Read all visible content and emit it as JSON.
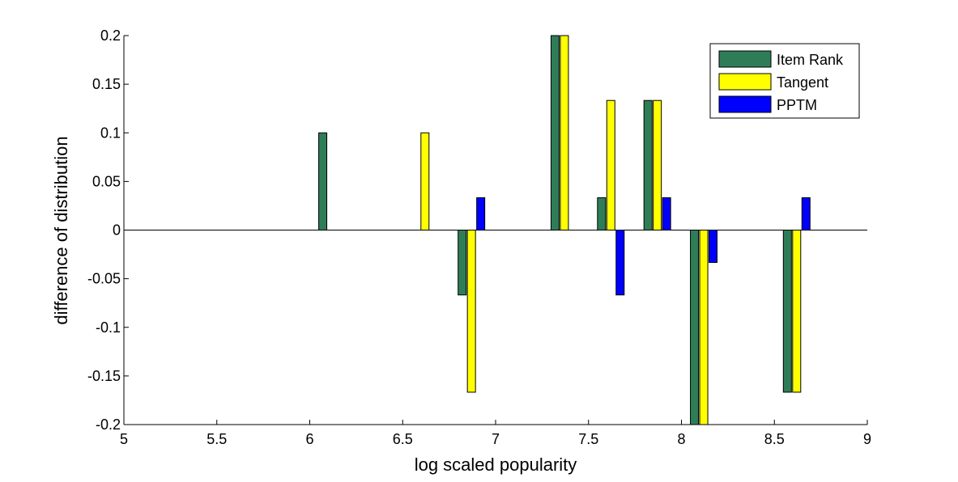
{
  "chart_data": {
    "type": "bar",
    "xlabel": "log scaled popularity",
    "ylabel": "difference of distribution",
    "xlim": [
      5,
      9
    ],
    "ylim": [
      -0.2,
      0.2
    ],
    "xticks": [
      "5",
      "5.5",
      "6",
      "6.5",
      "7",
      "7.5",
      "8",
      "8.5",
      "9"
    ],
    "yticks": [
      "0.2",
      "0.15",
      "0.1",
      "0.05",
      "0",
      "-0.05",
      "-0.1",
      "-0.15",
      "-0.2"
    ],
    "legend_position": "top-right",
    "series": [
      {
        "name": "Item Rank",
        "color": "#2e7d57",
        "points": [
          {
            "x": 6.07,
            "y": 0.1
          },
          {
            "x": 6.82,
            "y": -0.0667
          },
          {
            "x": 7.32,
            "y": 0.2
          },
          {
            "x": 7.57,
            "y": 0.0333
          },
          {
            "x": 7.82,
            "y": 0.1333
          },
          {
            "x": 8.07,
            "y": -0.2
          },
          {
            "x": 8.57,
            "y": -0.1667
          }
        ]
      },
      {
        "name": "Tangent",
        "color": "#ffff00",
        "points": [
          {
            "x": 6.62,
            "y": 0.1
          },
          {
            "x": 6.87,
            "y": -0.1667
          },
          {
            "x": 7.37,
            "y": 0.2
          },
          {
            "x": 7.62,
            "y": 0.1333
          },
          {
            "x": 7.87,
            "y": 0.1333
          },
          {
            "x": 8.12,
            "y": -0.2
          },
          {
            "x": 8.62,
            "y": -0.1667
          }
        ]
      },
      {
        "name": "PPTM",
        "color": "#0000ff",
        "points": [
          {
            "x": 6.92,
            "y": 0.0333
          },
          {
            "x": 7.67,
            "y": -0.0667
          },
          {
            "x": 7.92,
            "y": 0.0333
          },
          {
            "x": 8.17,
            "y": -0.0333
          },
          {
            "x": 8.67,
            "y": 0.0333
          }
        ]
      }
    ]
  }
}
